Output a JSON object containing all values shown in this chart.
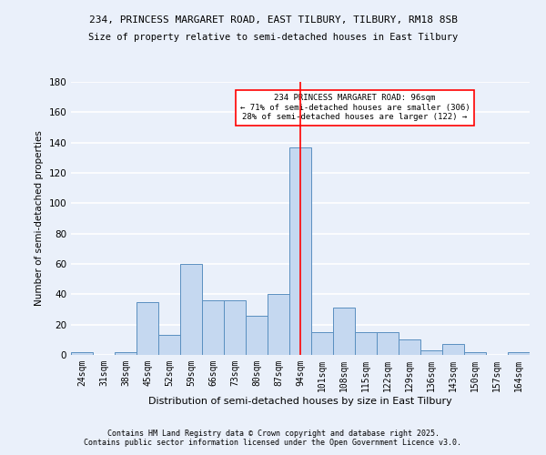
{
  "title1": "234, PRINCESS MARGARET ROAD, EAST TILBURY, TILBURY, RM18 8SB",
  "title2": "Size of property relative to semi-detached houses in East Tilbury",
  "xlabel": "Distribution of semi-detached houses by size in East Tilbury",
  "ylabel": "Number of semi-detached properties",
  "bins": [
    "24sqm",
    "31sqm",
    "38sqm",
    "45sqm",
    "52sqm",
    "59sqm",
    "66sqm",
    "73sqm",
    "80sqm",
    "87sqm",
    "94sqm",
    "101sqm",
    "108sqm",
    "115sqm",
    "122sqm",
    "129sqm",
    "136sqm",
    "143sqm",
    "150sqm",
    "157sqm",
    "164sqm"
  ],
  "values": [
    2,
    0,
    2,
    35,
    13,
    60,
    36,
    36,
    26,
    40,
    137,
    15,
    31,
    15,
    15,
    10,
    3,
    7,
    2,
    0,
    2
  ],
  "bar_color": "#c5d8f0",
  "bar_edge_color": "#5a8fc0",
  "highlight_bin_index": 10,
  "highlight_color": "#ff0000",
  "annotation_text": "234 PRINCESS MARGARET ROAD: 96sqm\n← 71% of semi-detached houses are smaller (306)\n28% of semi-detached houses are larger (122) →",
  "annotation_box_color": "#ffffff",
  "annotation_box_edge": "#ff0000",
  "ylim": [
    0,
    180
  ],
  "yticks": [
    0,
    20,
    40,
    60,
    80,
    100,
    120,
    140,
    160,
    180
  ],
  "background_color": "#eaf0fa",
  "grid_color": "#ffffff",
  "footer1": "Contains HM Land Registry data © Crown copyright and database right 2025.",
  "footer2": "Contains public sector information licensed under the Open Government Licence v3.0."
}
